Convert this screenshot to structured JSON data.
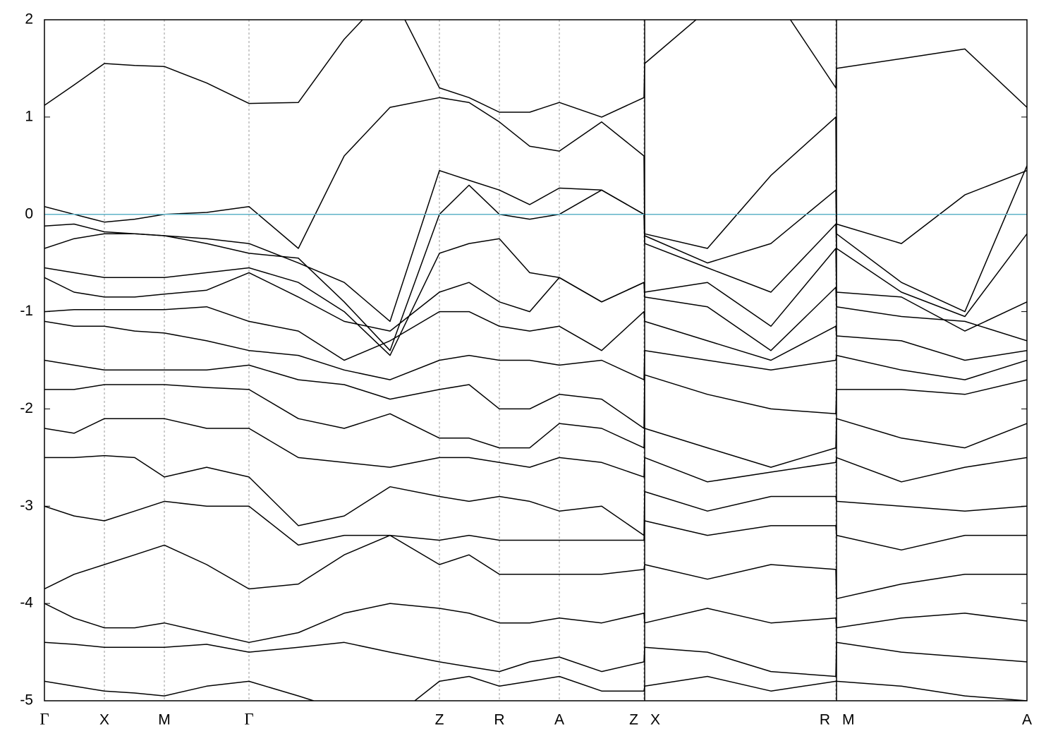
{
  "chart_data": {
    "type": "line",
    "color": "#000000",
    "hline": {
      "value": 0,
      "color": "#5fb3c8"
    },
    "panel_breaks": [
      851,
      1123
    ],
    "xgrid": true,
    "xlim": [
      0,
      1393
    ],
    "ylim": [
      -5,
      2
    ],
    "yticks": [
      -5,
      -4,
      -3,
      -2,
      -1,
      0,
      1,
      2
    ],
    "xticks": [
      {
        "value": 0,
        "label": "Γ"
      },
      {
        "value": 85,
        "label": "X"
      },
      {
        "value": 170,
        "label": "M"
      },
      {
        "value": 290,
        "label": "Γ"
      },
      {
        "value": 560,
        "label": "Z"
      },
      {
        "value": 645,
        "label": "R"
      },
      {
        "value": 730,
        "label": "A"
      },
      {
        "value": 850,
        "label": "Z"
      },
      {
        "value": 851,
        "label": "X"
      },
      {
        "value": 1122,
        "label": "R"
      },
      {
        "value": 1123,
        "label": "M"
      },
      {
        "value": 1393,
        "label": "A"
      }
    ],
    "x": [
      0,
      42,
      85,
      128,
      170,
      230,
      290,
      360,
      425,
      490,
      560,
      602,
      645,
      688,
      730,
      790,
      850,
      851,
      940,
      1030,
      1122,
      1123,
      1215,
      1305,
      1393
    ],
    "series": [
      {
        "values": [
          1.12,
          1.33,
          1.55,
          1.53,
          1.52,
          1.35,
          1.14,
          1.15,
          1.8,
          2.3,
          1.3,
          1.2,
          1.05,
          1.05,
          1.15,
          1.0,
          1.2,
          1.55,
          2.1,
          2.3,
          1.3,
          1.5,
          1.6,
          1.7,
          1.1
        ]
      },
      {
        "values": [
          0.08,
          0.0,
          -0.08,
          -0.05,
          0.0,
          0.02,
          0.08,
          -0.35,
          0.6,
          1.1,
          1.2,
          1.15,
          0.95,
          0.7,
          0.65,
          0.95,
          0.6,
          -0.2,
          -0.35,
          0.4,
          1.0,
          -0.1,
          -0.3,
          0.2,
          0.45
        ]
      },
      {
        "values": [
          -0.12,
          -0.1,
          -0.18,
          -0.2,
          -0.22,
          -0.25,
          -0.3,
          -0.5,
          -0.7,
          -1.1,
          0.45,
          0.35,
          0.25,
          0.1,
          0.27,
          0.25,
          0.0,
          -0.22,
          -0.5,
          -0.3,
          0.25,
          -0.2,
          -0.7,
          -1.0,
          0.5
        ]
      },
      {
        "values": [
          -0.35,
          -0.25,
          -0.2,
          -0.2,
          -0.22,
          -0.3,
          -0.4,
          -0.45,
          -0.9,
          -1.4,
          0.0,
          0.3,
          0.0,
          -0.05,
          0.0,
          0.25,
          0.0,
          -0.3,
          -0.55,
          -0.8,
          -0.1,
          -0.35,
          -0.8,
          -1.05,
          -0.2
        ]
      },
      {
        "values": [
          -0.55,
          -0.6,
          -0.65,
          -0.65,
          -0.65,
          -0.6,
          -0.55,
          -0.7,
          -1.0,
          -1.45,
          -0.4,
          -0.3,
          -0.25,
          -0.6,
          -0.65,
          -0.9,
          -0.7,
          -0.8,
          -0.7,
          -1.15,
          -0.35,
          -0.8,
          -0.85,
          -1.2,
          -0.9
        ]
      },
      {
        "values": [
          -0.65,
          -0.8,
          -0.85,
          -0.85,
          -0.82,
          -0.78,
          -0.6,
          -0.85,
          -1.1,
          -1.2,
          -0.8,
          -0.7,
          -0.9,
          -1.0,
          -0.65,
          -0.9,
          -0.7,
          -0.85,
          -0.95,
          -1.4,
          -0.75,
          -0.95,
          -1.05,
          -1.1,
          -1.3
        ]
      },
      {
        "values": [
          -1.0,
          -0.98,
          -0.98,
          -0.98,
          -0.98,
          -0.95,
          -1.1,
          -1.2,
          -1.5,
          -1.3,
          -1.0,
          -1.0,
          -1.15,
          -1.2,
          -1.15,
          -1.4,
          -1.0,
          -1.1,
          -1.3,
          -1.5,
          -1.15,
          -1.25,
          -1.3,
          -1.5,
          -1.4
        ]
      },
      {
        "values": [
          -1.1,
          -1.15,
          -1.15,
          -1.2,
          -1.22,
          -1.3,
          -1.4,
          -1.45,
          -1.6,
          -1.7,
          -1.5,
          -1.45,
          -1.5,
          -1.5,
          -1.55,
          -1.5,
          -1.7,
          -1.4,
          -1.5,
          -1.6,
          -1.5,
          -1.45,
          -1.6,
          -1.7,
          -1.5
        ]
      },
      {
        "values": [
          -1.5,
          -1.55,
          -1.6,
          -1.6,
          -1.6,
          -1.6,
          -1.55,
          -1.7,
          -1.75,
          -1.9,
          -1.8,
          -1.75,
          -2.0,
          -2.0,
          -1.85,
          -1.9,
          -2.2,
          -1.65,
          -1.85,
          -2.0,
          -2.05,
          -1.8,
          -1.8,
          -1.85,
          -1.7
        ]
      },
      {
        "values": [
          -1.8,
          -1.8,
          -1.75,
          -1.75,
          -1.75,
          -1.78,
          -1.8,
          -2.1,
          -2.2,
          -2.05,
          -2.3,
          -2.3,
          -2.4,
          -2.4,
          -2.15,
          -2.2,
          -2.4,
          -2.2,
          -2.4,
          -2.6,
          -2.4,
          -2.1,
          -2.3,
          -2.4,
          -2.15
        ]
      },
      {
        "values": [
          -2.2,
          -2.25,
          -2.1,
          -2.1,
          -2.1,
          -2.2,
          -2.2,
          -2.5,
          -2.55,
          -2.6,
          -2.5,
          -2.5,
          -2.55,
          -2.6,
          -2.5,
          -2.55,
          -2.7,
          -2.5,
          -2.75,
          -2.65,
          -2.55,
          -2.5,
          -2.75,
          -2.6,
          -2.5
        ]
      },
      {
        "values": [
          -2.5,
          -2.5,
          -2.48,
          -2.5,
          -2.7,
          -2.6,
          -2.7,
          -3.2,
          -3.1,
          -2.8,
          -2.9,
          -2.95,
          -2.9,
          -2.95,
          -3.05,
          -3.0,
          -3.3,
          -2.85,
          -3.05,
          -2.9,
          -2.9,
          -2.95,
          -3.0,
          -3.05,
          -3.0
        ]
      },
      {
        "values": [
          -3.0,
          -3.1,
          -3.15,
          -3.05,
          -2.95,
          -3.0,
          -3.0,
          -3.4,
          -3.3,
          -3.3,
          -3.35,
          -3.3,
          -3.35,
          -3.35,
          -3.35,
          -3.35,
          -3.35,
          -3.15,
          -3.3,
          -3.2,
          -3.2,
          -3.3,
          -3.45,
          -3.3,
          -3.3
        ]
      },
      {
        "values": [
          -3.85,
          -3.7,
          -3.6,
          -3.5,
          -3.4,
          -3.6,
          -3.85,
          -3.8,
          -3.5,
          -3.3,
          -3.6,
          -3.5,
          -3.7,
          -3.7,
          -3.7,
          -3.7,
          -3.65,
          -3.6,
          -3.75,
          -3.6,
          -3.65,
          -3.95,
          -3.8,
          -3.7,
          -3.7
        ]
      },
      {
        "values": [
          -4.0,
          -4.15,
          -4.25,
          -4.25,
          -4.2,
          -4.3,
          -4.4,
          -4.3,
          -4.1,
          -4.0,
          -4.05,
          -4.1,
          -4.2,
          -4.2,
          -4.15,
          -4.2,
          -4.1,
          -4.2,
          -4.05,
          -4.2,
          -4.15,
          -4.25,
          -4.15,
          -4.1,
          -4.18
        ]
      },
      {
        "values": [
          -4.4,
          -4.42,
          -4.45,
          -4.45,
          -4.45,
          -4.42,
          -4.5,
          -4.45,
          -4.4,
          -4.5,
          -4.6,
          -4.65,
          -4.7,
          -4.6,
          -4.55,
          -4.7,
          -4.6,
          -4.45,
          -4.5,
          -4.7,
          -4.75,
          -4.4,
          -4.5,
          -4.55,
          -4.6
        ]
      },
      {
        "values": [
          -4.8,
          -4.85,
          -4.9,
          -4.92,
          -4.95,
          -4.85,
          -4.8,
          -4.95,
          -5.1,
          -5.2,
          -4.8,
          -4.75,
          -4.85,
          -4.8,
          -4.75,
          -4.9,
          -4.9,
          -4.85,
          -4.75,
          -4.9,
          -4.8,
          -4.8,
          -4.85,
          -4.95,
          -5.0
        ]
      }
    ]
  }
}
